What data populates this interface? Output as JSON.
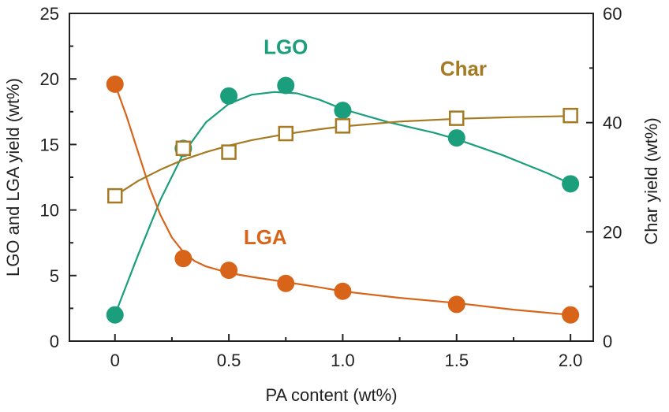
{
  "colors": {
    "LGO": "#1a9e7b",
    "LGA": "#d8641a",
    "Char": "#a57a23",
    "axis": "#222222"
  },
  "chart_data": {
    "type": "scatter",
    "xlabel": "PA content (wt%)",
    "ylabel": "LGO and LGA yield (wt%)",
    "ylabel_right": "Char yield (wt%)",
    "xlim": [
      -0.2,
      2.1
    ],
    "ylim": [
      0,
      25
    ],
    "ylim_right": [
      0,
      60
    ],
    "xticks": [
      0,
      0.5,
      1.0,
      1.5,
      2.0
    ],
    "xtick_labels": [
      "0",
      "0.5",
      "1.0",
      "1.5",
      "2.0"
    ],
    "xticks_minor": [
      0.25,
      0.75,
      1.25,
      1.75
    ],
    "yticks": [
      0,
      5,
      10,
      15,
      20,
      25
    ],
    "ytick_labels": [
      "0",
      "5",
      "10",
      "15",
      "20",
      "25"
    ],
    "yticks_right": [
      0,
      20,
      40,
      60
    ],
    "ytick_labels_right": [
      "0",
      "20",
      "40",
      "60"
    ],
    "grid": false,
    "legend": "none",
    "series": [
      {
        "name": "LGO",
        "axis": "left",
        "marker": "filled-circle",
        "x": [
          0,
          0.3,
          0.5,
          0.75,
          1.0,
          1.5,
          2.0
        ],
        "y": [
          2.0,
          14.7,
          18.7,
          19.5,
          17.6,
          15.5,
          12.0
        ],
        "curve": [
          [
            0,
            2.0
          ],
          [
            0.1,
            6.5
          ],
          [
            0.2,
            10.8
          ],
          [
            0.3,
            14.3
          ],
          [
            0.4,
            16.7
          ],
          [
            0.5,
            18.1
          ],
          [
            0.6,
            18.8
          ],
          [
            0.7,
            19.0
          ],
          [
            0.8,
            18.9
          ],
          [
            0.9,
            18.4
          ],
          [
            1.0,
            17.7
          ],
          [
            1.1,
            17.2
          ],
          [
            1.2,
            16.7
          ],
          [
            1.3,
            16.3
          ],
          [
            1.4,
            15.9
          ],
          [
            1.5,
            15.4
          ],
          [
            1.6,
            14.8
          ],
          [
            1.7,
            14.2
          ],
          [
            1.8,
            13.5
          ],
          [
            1.9,
            12.8
          ],
          [
            2.0,
            12.0
          ]
        ]
      },
      {
        "name": "LGA",
        "axis": "left",
        "marker": "filled-circle",
        "x": [
          0,
          0.3,
          0.5,
          0.75,
          1.0,
          1.5,
          2.0
        ],
        "y": [
          19.6,
          6.3,
          5.4,
          4.4,
          3.8,
          2.8,
          2.0
        ],
        "curve": [
          [
            0,
            19.6
          ],
          [
            0.05,
            17.2
          ],
          [
            0.1,
            14.5
          ],
          [
            0.15,
            11.8
          ],
          [
            0.2,
            9.6
          ],
          [
            0.25,
            7.9
          ],
          [
            0.3,
            6.8
          ],
          [
            0.35,
            6.1
          ],
          [
            0.4,
            5.7
          ],
          [
            0.5,
            5.2
          ],
          [
            0.6,
            4.9
          ],
          [
            0.75,
            4.5
          ],
          [
            0.9,
            4.1
          ],
          [
            1.0,
            3.8
          ],
          [
            1.25,
            3.3
          ],
          [
            1.5,
            2.9
          ],
          [
            1.75,
            2.4
          ],
          [
            2.0,
            2.0
          ]
        ]
      },
      {
        "name": "Char",
        "axis": "right",
        "marker": "open-square",
        "x": [
          0,
          0.3,
          0.5,
          0.75,
          1.0,
          1.5,
          2.0
        ],
        "y": [
          26.6,
          35.3,
          34.6,
          38.0,
          39.4,
          40.8,
          41.3
        ],
        "curve": [
          [
            0,
            26.6
          ],
          [
            0.1,
            29.3
          ],
          [
            0.2,
            31.4
          ],
          [
            0.3,
            33.2
          ],
          [
            0.4,
            34.6
          ],
          [
            0.5,
            35.8
          ],
          [
            0.6,
            36.8
          ],
          [
            0.75,
            37.9
          ],
          [
            0.9,
            38.8
          ],
          [
            1.0,
            39.3
          ],
          [
            1.25,
            40.2
          ],
          [
            1.5,
            40.7
          ],
          [
            1.75,
            41.0
          ],
          [
            2.0,
            41.2
          ]
        ]
      }
    ],
    "annotations": [
      {
        "text": "LGO",
        "series": "LGO",
        "x": 0.75,
        "y": 21.9
      },
      {
        "text": "Char",
        "series": "Char",
        "x": 1.53,
        "y": 48.6
      },
      {
        "text": "LGA",
        "series": "LGA",
        "x": 0.66,
        "y": 7.4
      }
    ]
  }
}
